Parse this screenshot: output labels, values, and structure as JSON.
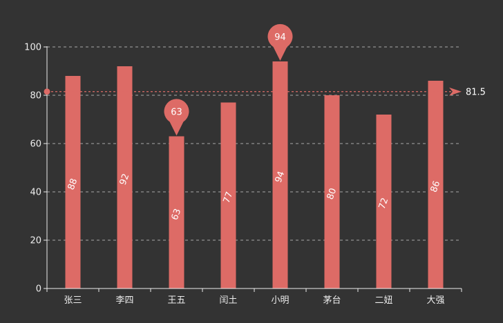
{
  "chart_data": {
    "type": "bar",
    "categories": [
      "张三",
      "李四",
      "王五",
      "闰土",
      "小明",
      "茅台",
      "二妞",
      "大强"
    ],
    "values": [
      88,
      92,
      63,
      77,
      94,
      80,
      72,
      86
    ],
    "ylim": [
      0,
      100
    ],
    "yticks": [
      0,
      20,
      40,
      60,
      80,
      100
    ],
    "grid": true,
    "data_labels": [
      "88",
      "92",
      "63",
      "77",
      "94",
      "80",
      "72",
      "86"
    ],
    "mark_points": [
      {
        "name": "max",
        "category": "小明",
        "value": 94,
        "label": "94"
      },
      {
        "name": "min",
        "category": "王五",
        "value": 63,
        "label": "63"
      }
    ],
    "mark_line": {
      "name": "average",
      "value": 81.5,
      "label": "81.5"
    }
  },
  "colors": {
    "background": "#333333",
    "bar": "#dd6b66",
    "axis": "#eeeeee",
    "grid": "#aaaaaa",
    "text": "#eeeeee"
  }
}
